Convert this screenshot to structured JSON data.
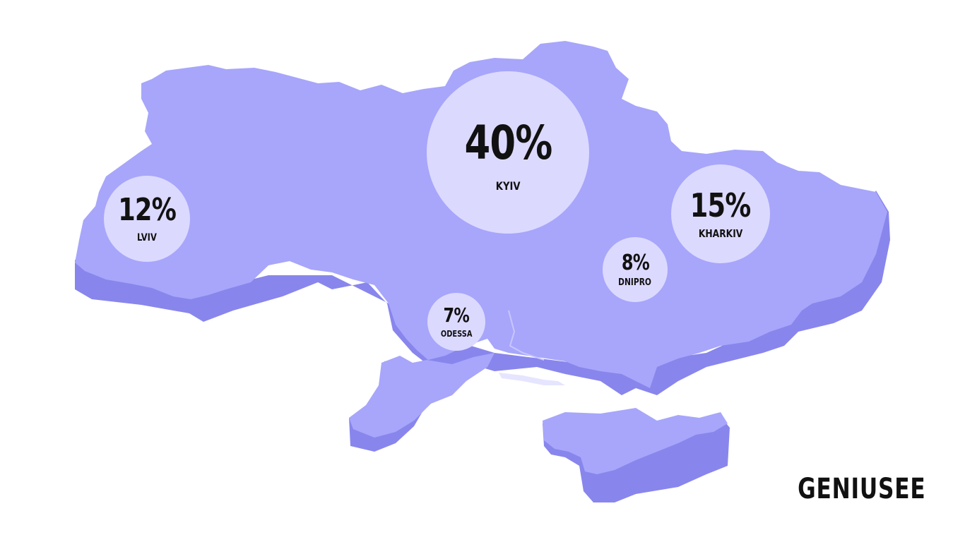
{
  "map": {
    "country_fill": "#a7a6fb",
    "country_shadow": "#8886ec",
    "bubble_fill": "#dcd9ff",
    "regions": [
      {
        "id": "kyiv",
        "percent": "40%",
        "city": "KYIV"
      },
      {
        "id": "lviv",
        "percent": "12%",
        "city": "LVIV"
      },
      {
        "id": "kharkiv",
        "percent": "15%",
        "city": "KHARKIV"
      },
      {
        "id": "dnipro",
        "percent": "8%",
        "city": "DNIPRO"
      },
      {
        "id": "odessa",
        "percent": "7%",
        "city": "ODESSA"
      }
    ]
  },
  "brand": {
    "logo_text": "GENIUSEE"
  }
}
